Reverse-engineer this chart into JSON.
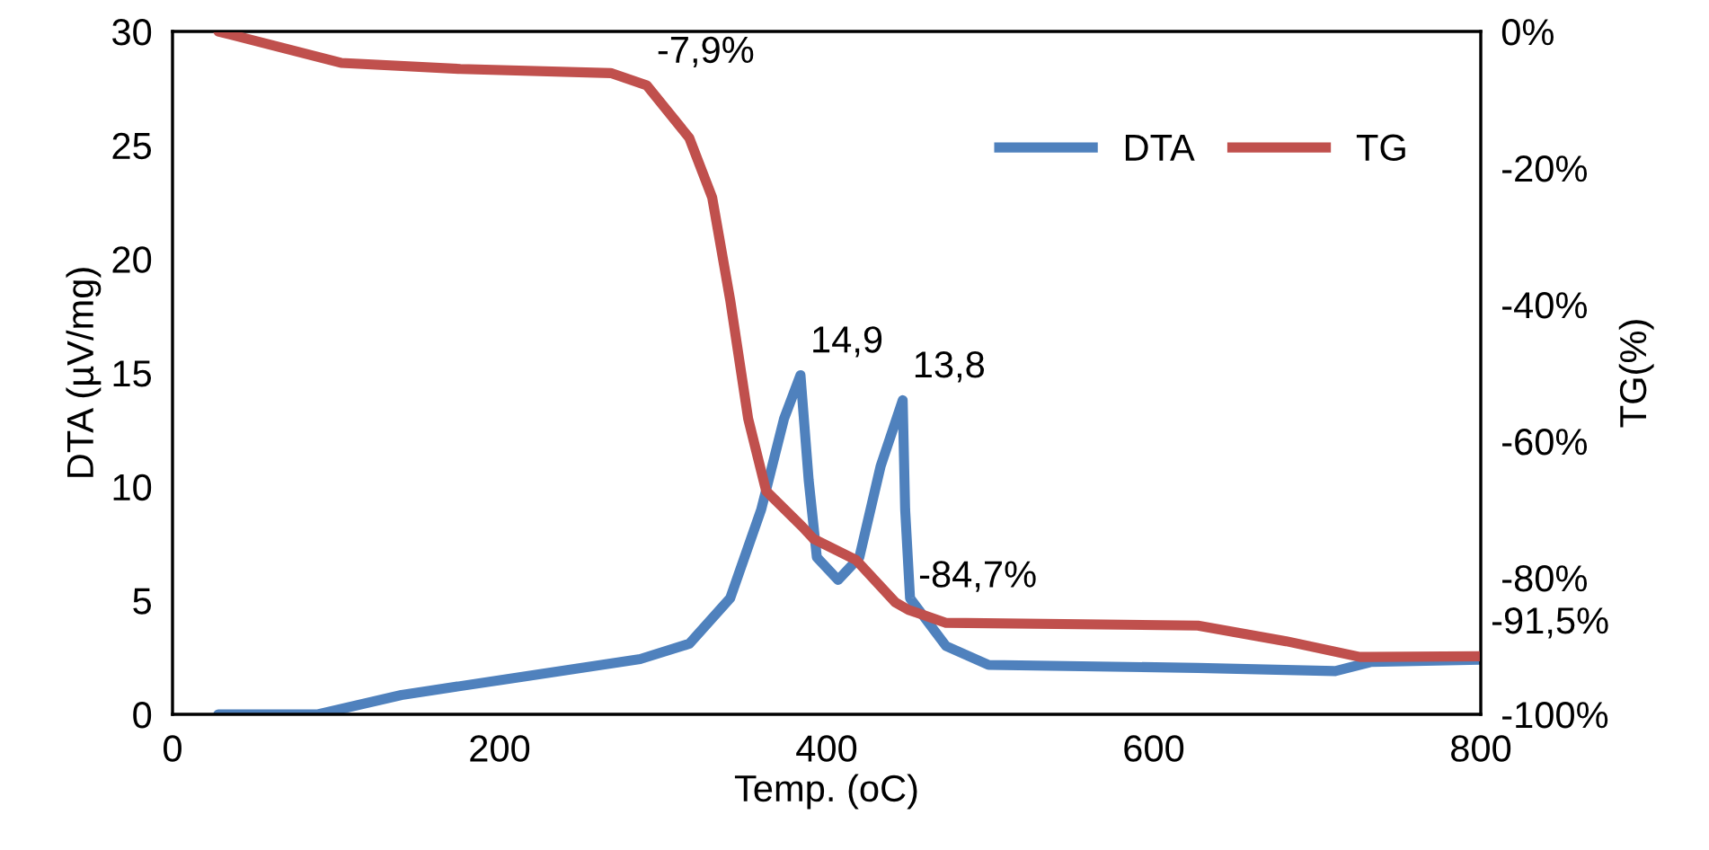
{
  "chart_data": {
    "type": "line",
    "xlabel": "Temp. (oC)",
    "ylabel": "DTA (µV/mg)",
    "y2label": "TG(%)",
    "xlim": [
      0,
      800
    ],
    "xticks": [
      0,
      200,
      400,
      600,
      800
    ],
    "ylim": [
      0,
      30
    ],
    "yticks": [
      0,
      5,
      10,
      15,
      20,
      25,
      30
    ],
    "y2lim": [
      -100,
      0
    ],
    "y2ticks": [
      {
        "value": -100,
        "label": "-100%"
      },
      {
        "value": -80,
        "label": "-80%"
      },
      {
        "value": -60,
        "label": "-60%"
      },
      {
        "value": -40,
        "label": "-40%"
      },
      {
        "value": -20,
        "label": "-20%"
      },
      {
        "value": 0,
        "label": "0%"
      }
    ],
    "grid": false,
    "legend": "top right",
    "marker": "none",
    "line_style": "solid",
    "series": [
      {
        "name": "DTA",
        "color": "#4f81bd",
        "x": [
          28,
          89,
          140,
          213,
          286,
          316,
          341,
          360,
          374,
          384,
          389,
          394,
          407,
          420,
          433,
          446.5,
          448,
          451,
          473,
          499,
          627,
          711,
          733,
          800
        ],
        "values": [
          0,
          0,
          0.85,
          1.64,
          2.43,
          3.1,
          5.1,
          9.0,
          13.0,
          14.9,
          10.3,
          6.9,
          5.9,
          6.9,
          10.9,
          13.8,
          9.0,
          5.1,
          3.0,
          2.17,
          2.04,
          1.9,
          2.3,
          2.4
        ],
        "value_labels": [
          null,
          null,
          null,
          null,
          null,
          null,
          null,
          null,
          null,
          "14,9",
          null,
          null,
          null,
          null,
          null,
          "13,8",
          null,
          null,
          null,
          null,
          null,
          null,
          null,
          null
        ]
      },
      {
        "name": "TG",
        "color": "#c0504d",
        "axis": "y2",
        "x": [
          28,
          67,
          103,
          176,
          268,
          290,
          316,
          330,
          341,
          352,
          363,
          385,
          392,
          418,
          442,
          450,
          473,
          627,
          681,
          726,
          800
        ],
        "values": [
          0,
          -2.4,
          -4.6,
          -5.5,
          -6.1,
          -7.9,
          -15.6,
          -24.3,
          -39.3,
          -56.7,
          -67.3,
          -72.5,
          -74.3,
          -77.4,
          -83.6,
          -84.7,
          -86.6,
          -87.0,
          -89.3,
          -91.6,
          -91.5
        ],
        "value_labels": [
          null,
          null,
          null,
          null,
          null,
          "-7,9%",
          null,
          null,
          null,
          null,
          null,
          null,
          null,
          null,
          null,
          "-84,7%",
          null,
          null,
          null,
          null,
          "-91,5%"
        ]
      }
    ]
  }
}
